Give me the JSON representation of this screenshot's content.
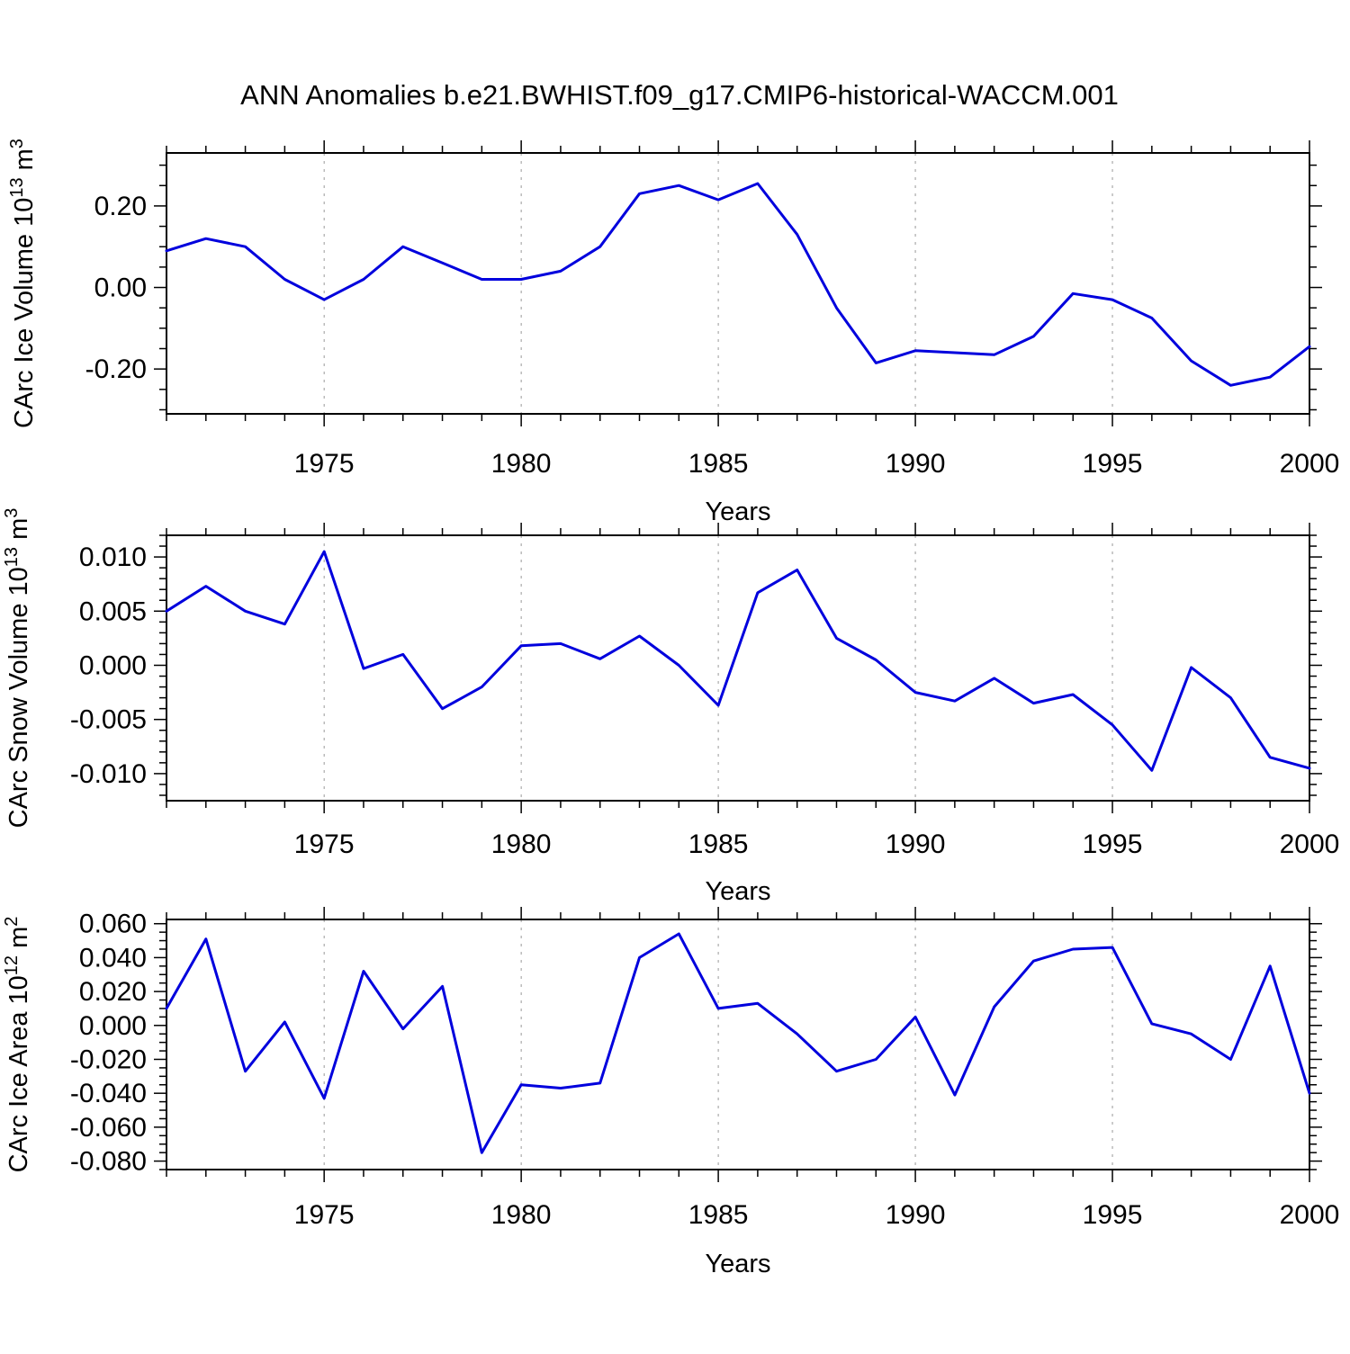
{
  "title": "ANN Anomalies b.e21.BWHIST.f09_g17.CMIP6-historical-WACCM.001",
  "style": {
    "line_color": "#0000dd",
    "grid_color": "#999999",
    "axis_color": "#000000",
    "background": "#ffffff"
  },
  "chart_data": [
    {
      "type": "line",
      "ylabel": "CArc Ice Volume 10¹³ m³",
      "ylabel_parts": [
        [
          "CArc Ice Volume 10",
          false
        ],
        [
          "13",
          true
        ],
        [
          " m",
          false
        ],
        [
          "3",
          true
        ]
      ],
      "xlabel": "Years",
      "x": [
        1971,
        1972,
        1973,
        1974,
        1975,
        1976,
        1977,
        1978,
        1979,
        1980,
        1981,
        1982,
        1983,
        1984,
        1985,
        1986,
        1987,
        1988,
        1989,
        1990,
        1991,
        1992,
        1993,
        1994,
        1995,
        1996,
        1997,
        1998,
        1999,
        2000
      ],
      "values": [
        0.09,
        0.12,
        0.1,
        0.02,
        -0.03,
        0.02,
        0.1,
        0.06,
        0.02,
        0.02,
        0.04,
        0.1,
        0.23,
        0.25,
        0.215,
        0.255,
        0.13,
        -0.05,
        -0.185,
        -0.155,
        -0.16,
        -0.165,
        -0.12,
        -0.015,
        -0.03,
        -0.075,
        -0.18,
        -0.24,
        -0.22,
        -0.145
      ],
      "xlim": [
        1971,
        2000
      ],
      "ylim": [
        -0.31,
        0.33
      ],
      "xticks": [
        1975,
        1980,
        1985,
        1990,
        1995,
        2000
      ],
      "xtick_labels": [
        "1975",
        "1980",
        "1985",
        "1990",
        "1995",
        "2000"
      ],
      "yticks": [
        -0.2,
        0.0,
        0.2
      ],
      "ytick_labels": [
        "-0.20",
        "0.00",
        "0.20"
      ],
      "yminor_step": 0.05,
      "grid_x": [
        1975,
        1980,
        1985,
        1990,
        1995
      ],
      "grid": true,
      "legend": "none"
    },
    {
      "type": "line",
      "ylabel": "CArc Snow Volume 10¹³ m³",
      "ylabel_parts": [
        [
          "CArc Snow Volume 10",
          false
        ],
        [
          "13",
          true
        ],
        [
          " m",
          false
        ],
        [
          "3",
          true
        ]
      ],
      "xlabel": "Years",
      "x": [
        1971,
        1972,
        1973,
        1974,
        1975,
        1976,
        1977,
        1978,
        1979,
        1980,
        1981,
        1982,
        1983,
        1984,
        1985,
        1986,
        1987,
        1988,
        1989,
        1990,
        1991,
        1992,
        1993,
        1994,
        1995,
        1996,
        1997,
        1998,
        1999,
        2000
      ],
      "values": [
        0.005,
        0.0073,
        0.005,
        0.0038,
        0.0105,
        -0.0003,
        0.001,
        -0.004,
        -0.002,
        0.0018,
        0.002,
        0.0006,
        0.0027,
        0.0,
        -0.0037,
        0.0067,
        0.0088,
        0.0025,
        0.0005,
        -0.0025,
        -0.0033,
        -0.0012,
        -0.0035,
        -0.0027,
        -0.0055,
        -0.0097,
        -0.0002,
        -0.003,
        -0.0085,
        -0.0095
      ],
      "xlim": [
        1971,
        2000
      ],
      "ylim": [
        -0.0125,
        0.012
      ],
      "xticks": [
        1975,
        1980,
        1985,
        1990,
        1995,
        2000
      ],
      "xtick_labels": [
        "1975",
        "1980",
        "1985",
        "1990",
        "1995",
        "2000"
      ],
      "yticks": [
        -0.01,
        -0.005,
        0.0,
        0.005,
        0.01
      ],
      "ytick_labels": [
        "-0.010",
        "-0.005",
        "0.000",
        "0.005",
        "0.010"
      ],
      "yminor_step": 0.001,
      "grid_x": [
        1975,
        1980,
        1985,
        1990,
        1995
      ],
      "grid": true,
      "legend": "none"
    },
    {
      "type": "line",
      "ylabel": "CArc Ice Area 10¹² m²",
      "ylabel_parts": [
        [
          "CArc Ice Area 10",
          false
        ],
        [
          "12",
          true
        ],
        [
          " m",
          false
        ],
        [
          "2",
          true
        ]
      ],
      "xlabel": "Years",
      "x": [
        1971,
        1972,
        1973,
        1974,
        1975,
        1976,
        1977,
        1978,
        1979,
        1980,
        1981,
        1982,
        1983,
        1984,
        1985,
        1986,
        1987,
        1988,
        1989,
        1990,
        1991,
        1992,
        1993,
        1994,
        1995,
        1996,
        1997,
        1998,
        1999,
        2000
      ],
      "values": [
        0.01,
        0.051,
        -0.027,
        0.002,
        -0.043,
        0.032,
        -0.002,
        0.023,
        -0.075,
        -0.035,
        -0.037,
        -0.034,
        0.04,
        0.054,
        0.01,
        0.013,
        -0.005,
        -0.027,
        -0.02,
        0.005,
        -0.041,
        0.011,
        0.038,
        0.045,
        0.046,
        0.001,
        -0.005,
        -0.02,
        0.035,
        -0.04
      ],
      "xlim": [
        1971,
        2000
      ],
      "ylim": [
        -0.085,
        0.0625
      ],
      "xticks": [
        1975,
        1980,
        1985,
        1990,
        1995,
        2000
      ],
      "xtick_labels": [
        "1975",
        "1980",
        "1985",
        "1990",
        "1995",
        "2000"
      ],
      "yticks": [
        -0.08,
        -0.06,
        -0.04,
        -0.02,
        0.0,
        0.02,
        0.04,
        0.06
      ],
      "ytick_labels": [
        "-0.080",
        "-0.060",
        "-0.040",
        "-0.020",
        "0.000",
        "0.020",
        "0.040",
        "0.060"
      ],
      "yminor_step": 0.005,
      "grid_x": [
        1975,
        1980,
        1985,
        1990,
        1995
      ],
      "grid": true,
      "legend": "none"
    }
  ]
}
